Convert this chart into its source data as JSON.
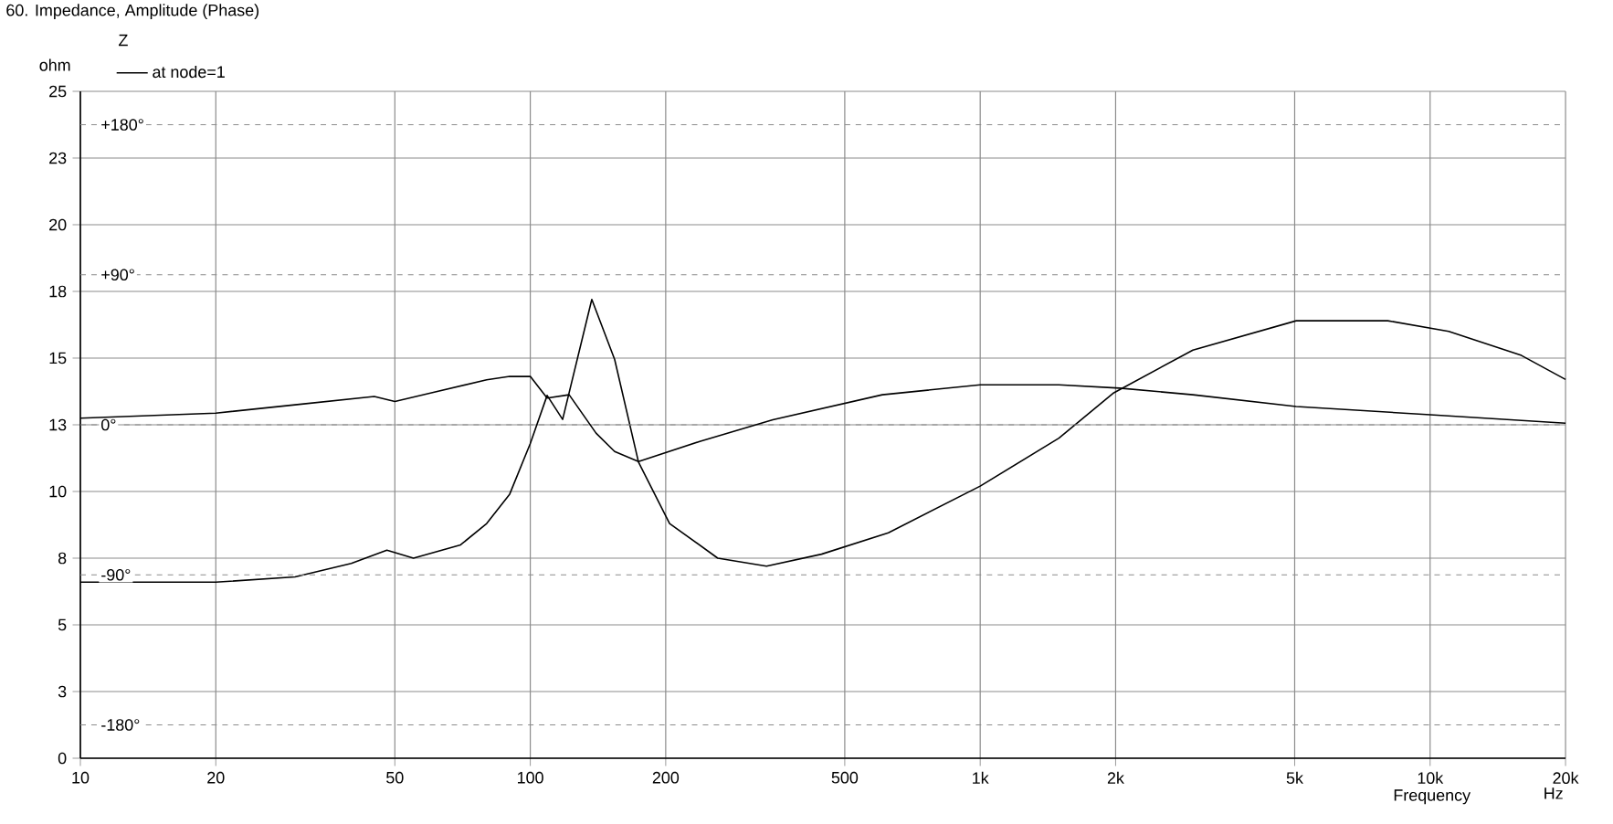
{
  "chart_data": {
    "type": "line",
    "title": "60. Impedance, Amplitude (Phase)",
    "xlabel": "Frequency",
    "ylabel": "ohm",
    "legend_title": "Z",
    "annotations": [
      "Hz"
    ],
    "log": "x",
    "grid": true,
    "legend": "top left",
    "xlim": [
      10,
      20000
    ],
    "ylim": [
      0,
      25
    ],
    "y2lim": [
      -200,
      200
    ],
    "xticks": [
      10,
      20,
      50,
      100,
      200,
      500,
      {
        "value": 1000,
        "label": "1k"
      },
      {
        "value": 2000,
        "label": "2k"
      },
      {
        "value": 5000,
        "label": "5k"
      },
      {
        "value": 10000,
        "label": "10k"
      },
      {
        "value": 20000,
        "label": "20k"
      }
    ],
    "yticks": [
      0,
      {
        "value": 2.5,
        "label": "3"
      },
      5,
      {
        "value": 7.5,
        "label": "8"
      },
      10,
      {
        "value": 12.5,
        "label": "13"
      },
      15,
      {
        "value": 17.5,
        "label": "18"
      },
      20,
      {
        "value": 22.5,
        "label": "23"
      },
      25
    ],
    "y2ticks": [
      {
        "value": -180,
        "label": "-180°"
      },
      {
        "value": -90,
        "label": "-90°"
      },
      {
        "value": 0,
        "label": "0°"
      },
      {
        "value": 90,
        "label": "+90°"
      },
      {
        "value": 180,
        "label": "+180°"
      }
    ],
    "series": [
      {
        "name": "at node=1",
        "color": "#000000",
        "x": [
          10,
          20,
          30,
          40,
          48,
          55,
          70,
          80,
          90,
          100,
          109,
          118,
          137,
          154,
          174,
          204,
          261,
          335,
          444,
          625,
          1000,
          1496,
          1982,
          2970,
          5040,
          8050,
          11000,
          15960,
          20000
        ],
        "values": [
          6.6,
          6.6,
          6.8,
          7.3,
          7.8,
          7.5,
          8.0,
          8.8,
          9.9,
          11.8,
          13.6,
          12.7,
          17.2,
          14.95,
          11.1,
          8.8,
          7.5,
          7.2,
          7.65,
          8.45,
          10.2,
          12.0,
          13.7,
          15.3,
          16.4,
          16.4,
          16.0,
          15.1,
          14.2
        ]
      },
      {
        "color": "#000000",
        "axis": "y2",
        "x": [
          10,
          20,
          30,
          45,
          50,
          60,
          80,
          90,
          100,
          109,
          122,
          140,
          154,
          174,
          238,
          346,
          606,
          1000,
          1496,
          2042,
          2970,
          5040,
          10000,
          20000
        ],
        "values": [
          4,
          7,
          12,
          17,
          14,
          19,
          27,
          29,
          29,
          16,
          18,
          -5,
          -16,
          -22,
          -10,
          3,
          18,
          24,
          24,
          22,
          18,
          11,
          6,
          1
        ]
      }
    ]
  }
}
